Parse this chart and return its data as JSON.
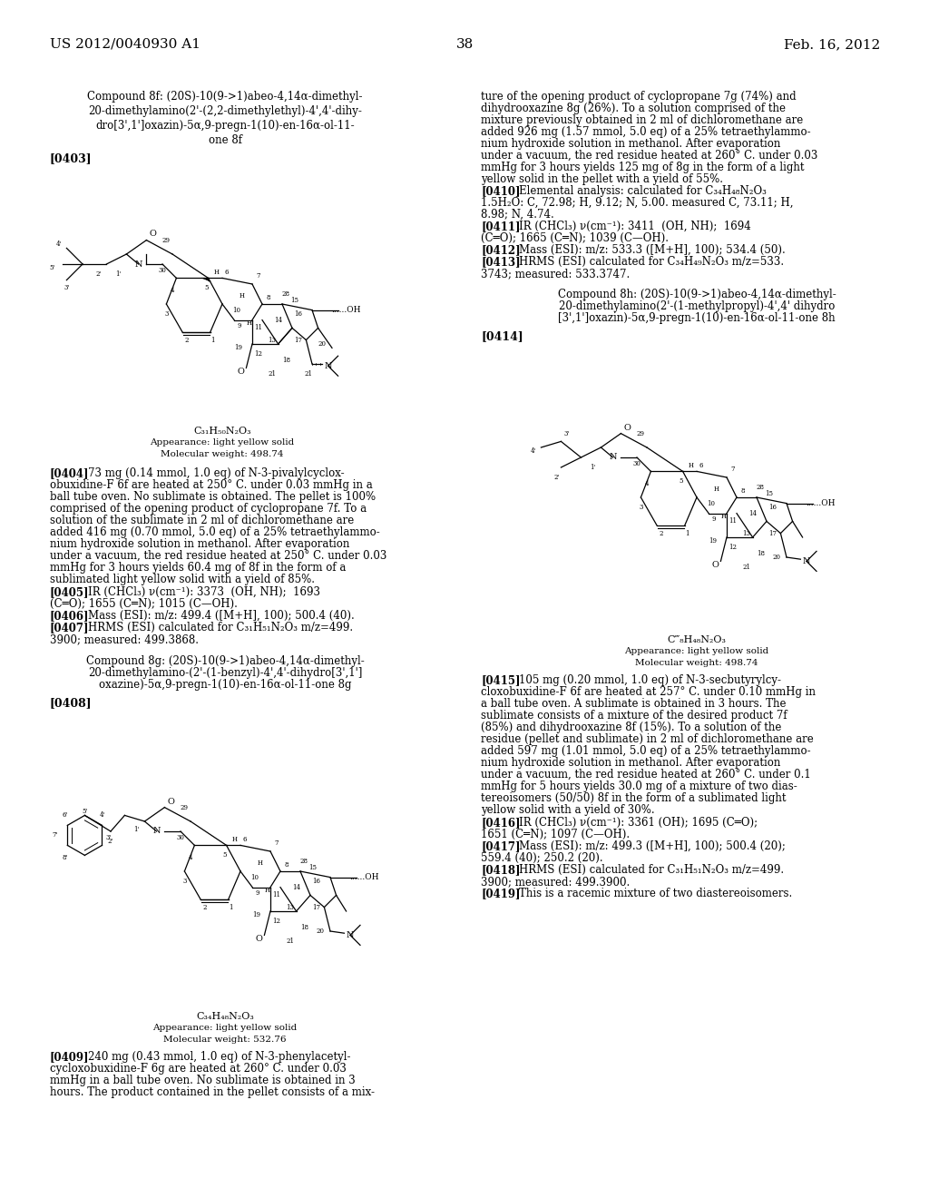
{
  "page_width": 10.24,
  "page_height": 13.2,
  "dpi": 100,
  "background_color": "#ffffff",
  "text_color": "#000000",
  "font_family": "DejaVu Serif"
}
